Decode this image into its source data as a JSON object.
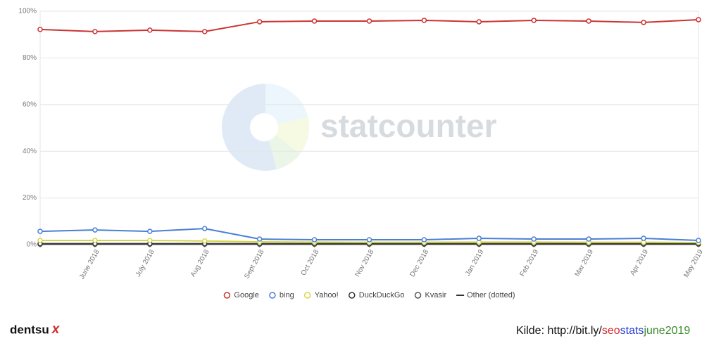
{
  "chart_data": {
    "type": "line",
    "watermark": "statcounter",
    "categories": [
      null,
      "June 2018",
      "July 2018",
      "Aug 2018",
      "Sept 2018",
      "Oct 2018",
      "Nov 2018",
      "Dec 2018",
      "Jan 2019",
      "Feb 2019",
      "Mar 2019",
      "Apr 2019",
      "May 2019"
    ],
    "ylim": [
      0,
      100
    ],
    "yticks": [
      {
        "value": 0,
        "label": "0%"
      },
      {
        "value": 20,
        "label": "20%"
      },
      {
        "value": 40,
        "label": "40%"
      },
      {
        "value": 60,
        "label": "60%"
      },
      {
        "value": 80,
        "label": "80%"
      },
      {
        "value": 100,
        "label": "100%"
      }
    ],
    "grid": true,
    "series": [
      {
        "name": "Google",
        "color": "#cc3333",
        "markers": true,
        "values": [
          92.2,
          91.3,
          91.9,
          91.3,
          95.5,
          95.8,
          95.8,
          96.1,
          95.5,
          96.1,
          95.8,
          95.2,
          96.4
        ]
      },
      {
        "name": "bing",
        "color": "#4a7fd6",
        "markers": true,
        "values": [
          5.7,
          6.3,
          5.7,
          6.9,
          2.4,
          2.1,
          2.1,
          2.1,
          2.7,
          2.4,
          2.4,
          2.7,
          1.8
        ]
      },
      {
        "name": "Yahoo!",
        "color": "#d6d64a",
        "markers": true,
        "values": [
          1.8,
          1.8,
          1.8,
          1.6,
          1.2,
          1.1,
          1.0,
          1.0,
          1.1,
          1.1,
          1.0,
          1.0,
          0.9
        ]
      },
      {
        "name": "DuckDuckGo",
        "color": "#333333",
        "markers": true,
        "values": [
          0.4,
          0.4,
          0.4,
          0.4,
          0.4,
          0.4,
          0.4,
          0.4,
          0.4,
          0.4,
          0.4,
          0.4,
          0.4
        ]
      },
      {
        "name": "Kvasir",
        "color": "#555555",
        "markers": true,
        "values": [
          0.2,
          0.2,
          0.2,
          0.2,
          0.2,
          0.2,
          0.2,
          0.2,
          0.2,
          0.2,
          0.2,
          0.2,
          0.2
        ]
      },
      {
        "name": "Other (dotted)",
        "color": "#333333",
        "markers": false,
        "dotted": true,
        "values": [
          0.3,
          0.3,
          0.3,
          0.3,
          0.3,
          0.3,
          0.3,
          0.3,
          0.3,
          0.3,
          0.3,
          0.3,
          0.3
        ]
      }
    ]
  },
  "footer": {
    "brand": "dentsu",
    "brand_mark": "x",
    "source_prefix": "Kilde: http://bit.ly/",
    "source_parts": [
      {
        "text": "seo",
        "color": "#d42a2a"
      },
      {
        "text": "stats",
        "color": "#2a3fd4"
      },
      {
        "text": "june2019",
        "color": "#3a8a2a"
      }
    ]
  }
}
